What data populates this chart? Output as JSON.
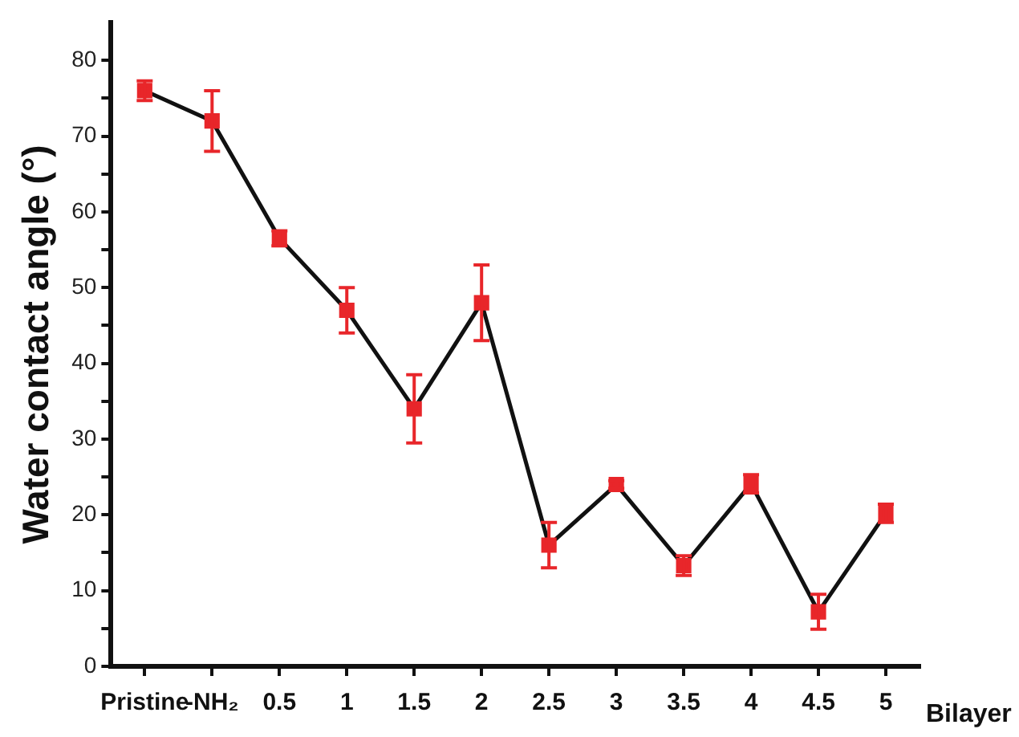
{
  "chart_data": {
    "type": "line",
    "ylabel": "Water contact angle (°)",
    "xlabel": "Bilayer",
    "categories": [
      "Pristine",
      "-NH₂",
      "0.5",
      "1",
      "1.5",
      "2",
      "2.5",
      "3",
      "3.5",
      "4",
      "4.5",
      "5"
    ],
    "series": [
      {
        "color": "#e8262a",
        "values": [
          76,
          72,
          56.5,
          47,
          34,
          48,
          16,
          24,
          13.3,
          24.1,
          7.2,
          20.2
        ],
        "errors": [
          1.3,
          4,
          1,
          3,
          4.5,
          5,
          3,
          0.5,
          1.3,
          1.2,
          2.3,
          1.2
        ]
      }
    ],
    "ylim": [
      0,
      85
    ],
    "yticks": [
      0,
      {
        "value": 5,
        "label": null
      },
      10,
      {
        "value": 15,
        "label": null
      },
      20,
      {
        "value": 25,
        "label": null
      },
      30,
      {
        "value": 35,
        "label": null
      },
      40,
      {
        "value": 45,
        "label": null
      },
      50,
      {
        "value": 55,
        "label": null
      },
      60,
      {
        "value": 65,
        "label": null
      },
      70,
      {
        "value": 75,
        "label": null
      },
      80
    ],
    "grid": false,
    "legend": false,
    "marker": "square",
    "line_style": "solid"
  }
}
